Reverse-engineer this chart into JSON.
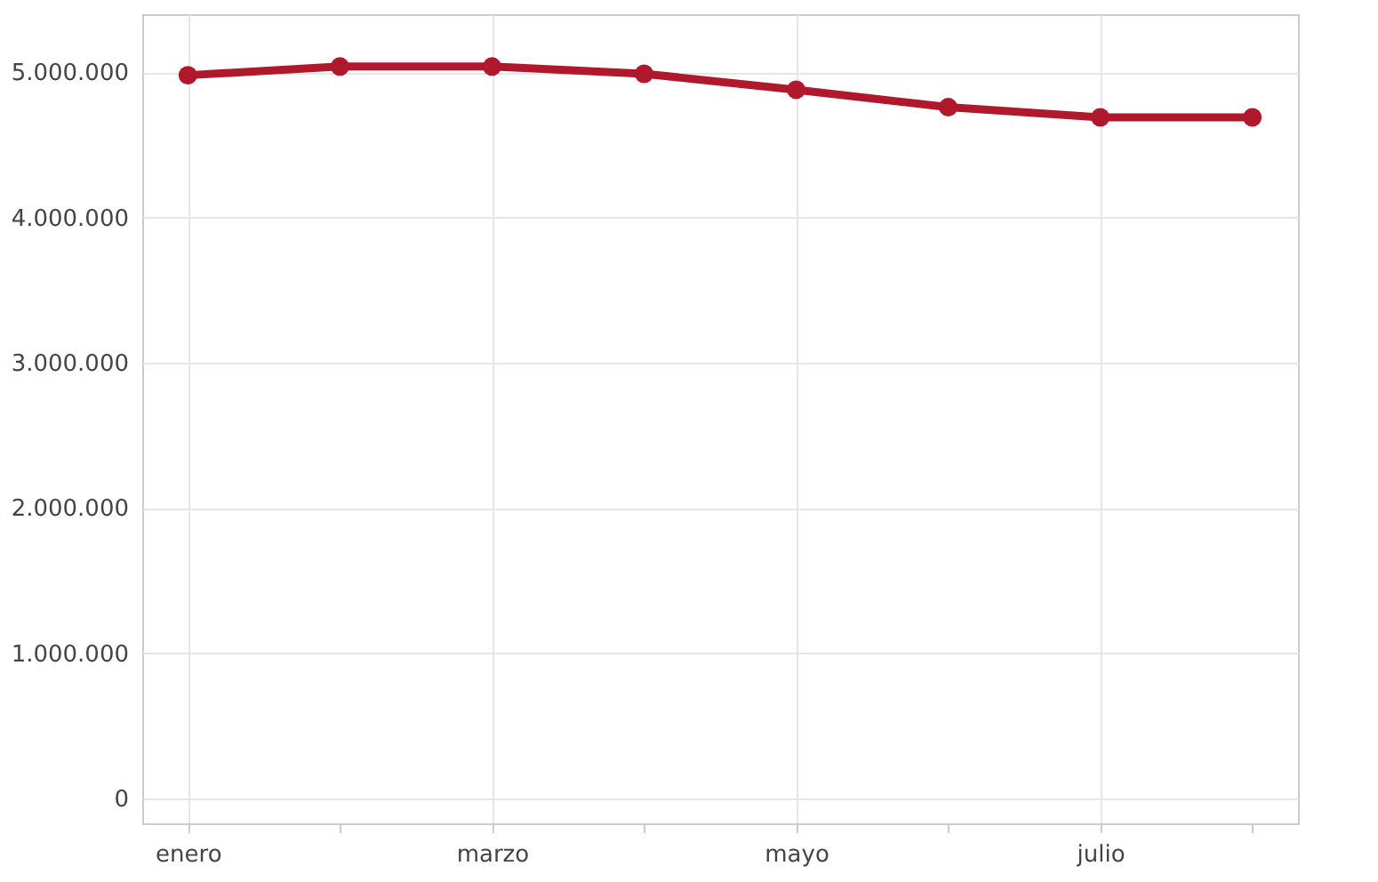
{
  "chart_data": {
    "type": "line",
    "categories": [
      "enero",
      null,
      "marzo",
      null,
      "mayo",
      null,
      "julio",
      null
    ],
    "series": [
      {
        "color": "#b0182b",
        "values": [
          4980000,
          5040000,
          5040000,
          4990000,
          4880000,
          4760000,
          4690000,
          4690000
        ]
      }
    ],
    "ylim": [
      -170000,
      5400000
    ],
    "yticks": [
      {
        "value": 0,
        "label": "0"
      },
      {
        "value": 1000000,
        "label": "1.000.000"
      },
      {
        "value": 2000000,
        "label": "2.000.000"
      },
      {
        "value": 3000000,
        "label": "3.000.000"
      },
      {
        "value": 4000000,
        "label": "4.000.000"
      },
      {
        "value": 5000000,
        "label": "5.000.000"
      }
    ],
    "grid": true,
    "marker": "circle",
    "line_style": "solid"
  }
}
